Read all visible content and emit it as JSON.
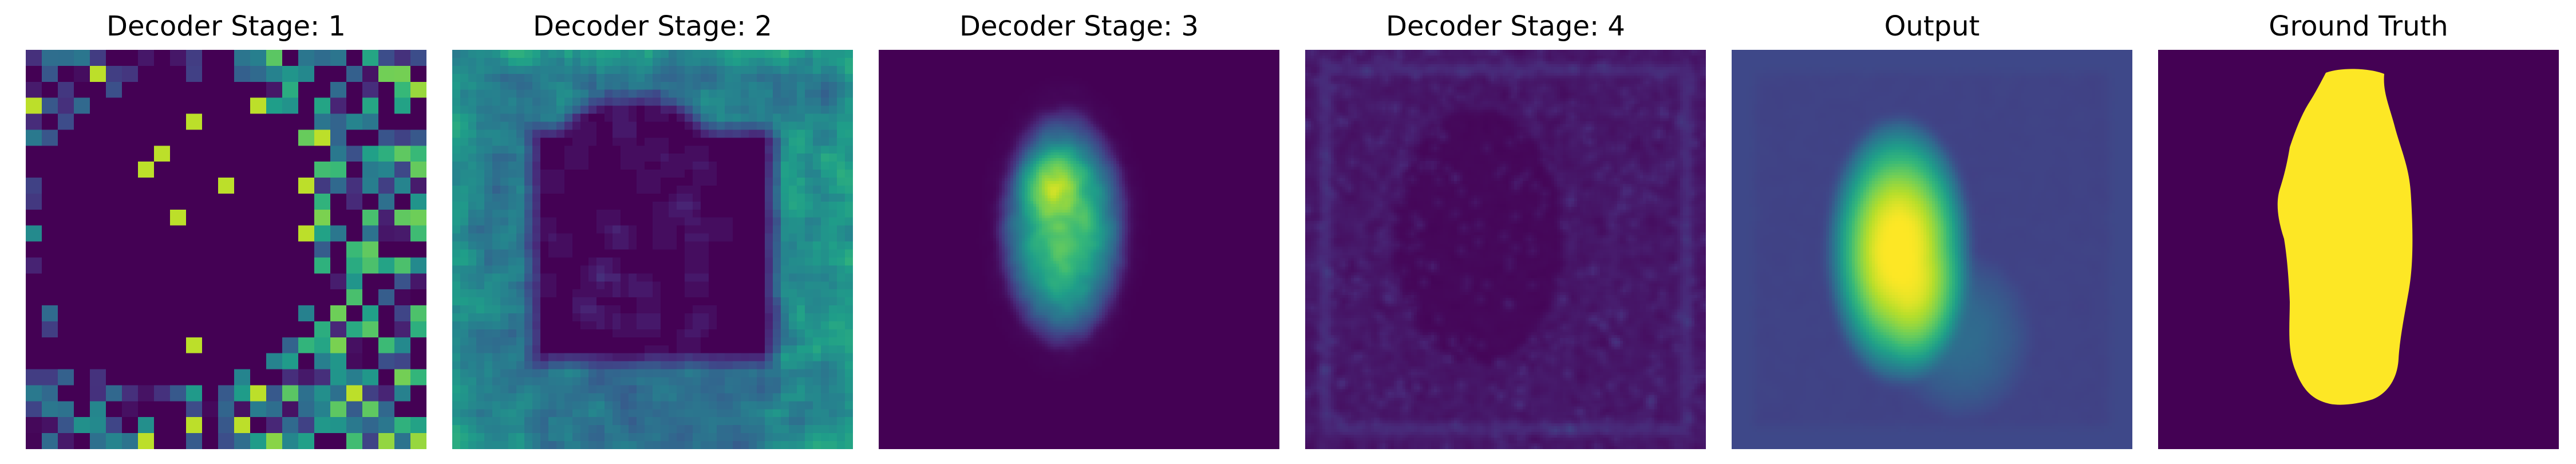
{
  "figure": {
    "panels": [
      {
        "id": "stage1",
        "title": "Decoder Stage: 1"
      },
      {
        "id": "stage2",
        "title": "Decoder Stage: 2"
      },
      {
        "id": "stage3",
        "title": "Decoder Stage: 3"
      },
      {
        "id": "stage4",
        "title": "Decoder Stage: 4"
      },
      {
        "id": "output",
        "title": "Output"
      },
      {
        "id": "ground_truth",
        "title": "Ground Truth"
      }
    ],
    "colormap": [
      "#440154",
      "#482878",
      "#3e4989",
      "#31688e",
      "#26828e",
      "#1f9e89",
      "#35b779",
      "#6ece58",
      "#b5de2b",
      "#fde725"
    ]
  }
}
